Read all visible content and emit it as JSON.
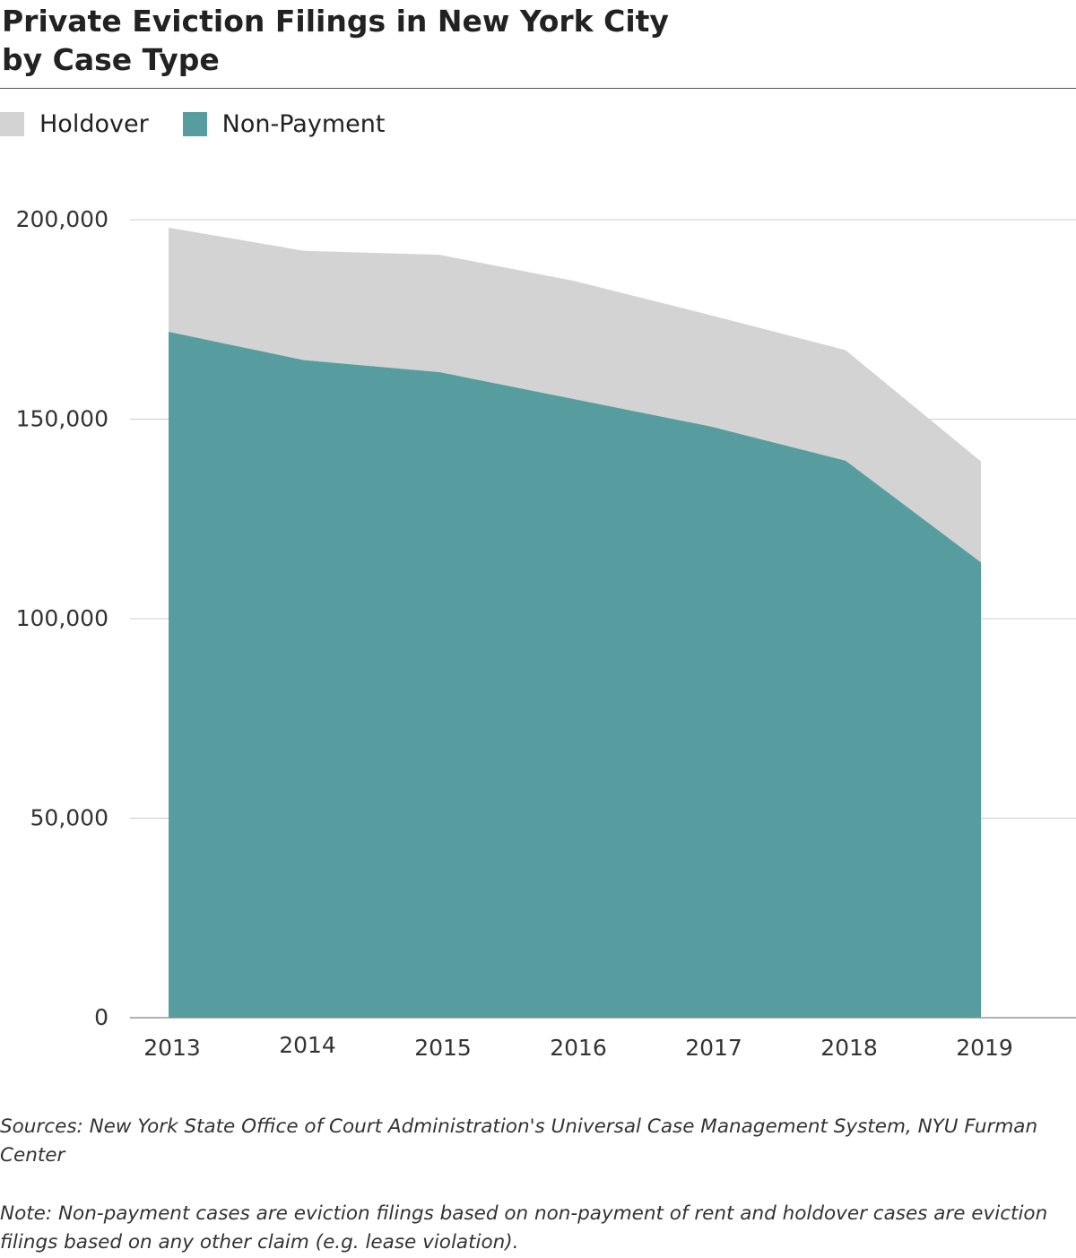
{
  "title_lines": [
    "Private Eviction Filings in New York City",
    "by Case Type"
  ],
  "sources": "Sources: New York State Office of Court Administration's Universal Case Management System, NYU Furman Center",
  "note": "Note: Non-payment cases are eviction filings based on non-payment of rent and holdover cases are eviction filings based on any other claim (e.g. lease violation).",
  "colors": {
    "holdover": "#d3d3d3",
    "non_payment": "#579da0",
    "grid": "#cccccc",
    "rule": "#555555"
  },
  "chart_data": {
    "type": "area",
    "stacked": true,
    "title": "Private Eviction Filings in New York City by Case Type",
    "x": [
      "2013",
      "2014",
      "2015",
      "2016",
      "2017",
      "2018",
      "2019"
    ],
    "series": [
      {
        "name": "Non-Payment",
        "color": "#579da0",
        "values": [
          171900,
          164800,
          161800,
          155000,
          148200,
          139600,
          114100
        ]
      },
      {
        "name": "Holdover",
        "color": "#d3d3d3",
        "values": [
          26100,
          27400,
          29400,
          29600,
          27900,
          27700,
          25300
        ]
      }
    ],
    "ylim": [
      0,
      200000
    ],
    "yticks": [
      0,
      50000,
      100000,
      150000,
      200000
    ],
    "ytick_labels": [
      "0",
      "50,000",
      "100,000",
      "150,000",
      "200,000"
    ],
    "grid": true,
    "legend_position": "top-left",
    "xlabel": "",
    "ylabel": ""
  }
}
